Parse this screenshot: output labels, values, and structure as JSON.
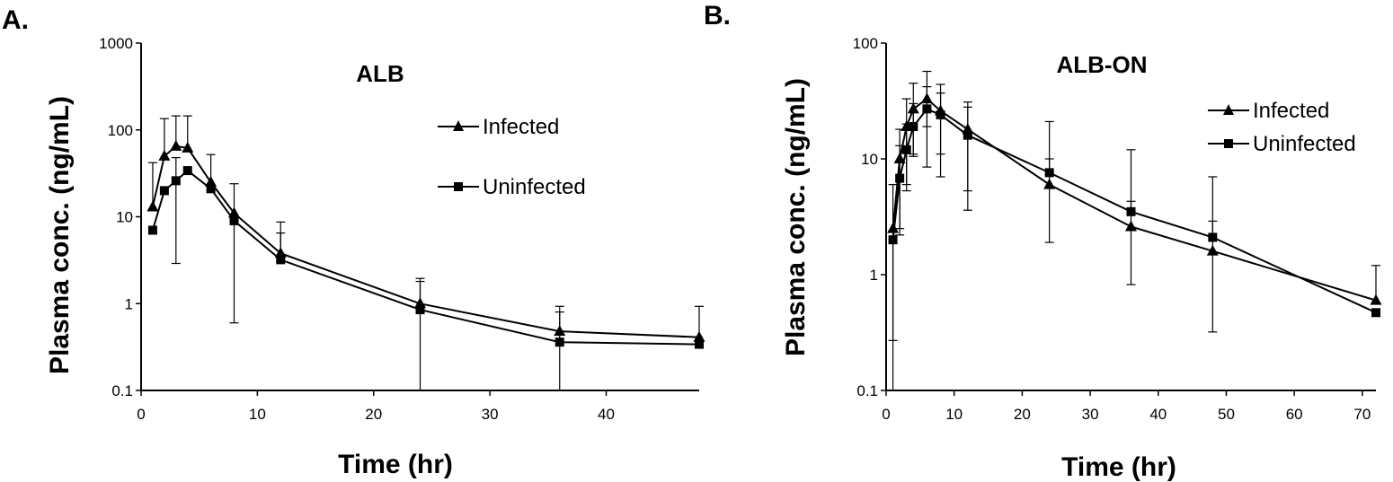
{
  "panels": [
    {
      "label": "A."
    },
    {
      "label": "B."
    }
  ],
  "chart_data": [
    {
      "type": "line",
      "title": "ALB",
      "xlabel": "Time (hr)",
      "ylabel": "Plasma conc. (ng/mL)",
      "yscale": "log",
      "xlim": [
        0,
        48
      ],
      "ylim": [
        0.1,
        1000
      ],
      "xticks": [
        0,
        10,
        20,
        30,
        40
      ],
      "yticks": [
        0.1,
        1,
        10,
        100,
        1000
      ],
      "ytick_labels": [
        "0.1",
        "1",
        "10",
        "100",
        "1000"
      ],
      "legend_position": "upper-right",
      "series": [
        {
          "name": "Infected",
          "marker": "triangle",
          "x": [
            1,
            2,
            3,
            4,
            6,
            8,
            12,
            24,
            36,
            48
          ],
          "y": [
            13,
            50,
            65,
            62,
            25,
            11,
            3.8,
            1.0,
            0.48,
            0.41
          ],
          "err_upper": [
            42,
            135,
            145,
            145,
            52,
            24,
            8.7,
            1.95,
            0.93,
            0.93
          ]
        },
        {
          "name": "Uninfected",
          "marker": "square",
          "x": [
            1,
            2,
            3,
            4,
            6,
            8,
            12,
            24,
            36,
            48
          ],
          "y": [
            7,
            20,
            26,
            34,
            21,
            9,
            3.2,
            0.85,
            0.36,
            0.34
          ],
          "err_lower": [
            7,
            20,
            2.9,
            34,
            21,
            0.6,
            3.2,
            0.1,
            0.1,
            0.34
          ],
          "err_upper": [
            7,
            20,
            48,
            34,
            21,
            9,
            6.5,
            1.8,
            0.8,
            0.34
          ]
        }
      ]
    },
    {
      "type": "line",
      "title": "ALB-ON",
      "xlabel": "Time (hr)",
      "ylabel": "Plasma conc. (ng/mL)",
      "yscale": "log",
      "xlim": [
        0,
        72
      ],
      "ylim": [
        0.1,
        100
      ],
      "xticks": [
        0,
        10,
        20,
        30,
        40,
        50,
        60,
        70
      ],
      "yticks": [
        0.1,
        1,
        10,
        100
      ],
      "ytick_labels": [
        "0.1",
        "1",
        "10",
        "100"
      ],
      "legend_position": "upper-right",
      "series": [
        {
          "name": "Infected",
          "marker": "triangle",
          "x": [
            1,
            2,
            3,
            4,
            6,
            8,
            12,
            24,
            36,
            48,
            72
          ],
          "y": [
            2.5,
            10,
            19,
            27,
            33,
            26,
            18,
            6,
            2.6,
            1.6,
            0.6
          ],
          "err_lower": [
            0.1,
            2.5,
            6,
            11,
            19,
            11,
            5.3,
            1.9,
            0.82,
            0.32,
            0.6
          ],
          "err_upper": [
            6,
            18,
            33,
            45,
            57,
            44,
            31,
            21,
            12,
            7,
            1.2
          ]
        },
        {
          "name": "Uninfected",
          "marker": "square",
          "x": [
            1,
            2,
            3,
            4,
            6,
            8,
            12,
            24,
            36,
            48,
            72
          ],
          "y": [
            2,
            6.8,
            12,
            19,
            27,
            24,
            16,
            7.6,
            3.5,
            2.1,
            0.47
          ],
          "err_lower": [
            0.27,
            2.2,
            5.3,
            10.5,
            8.5,
            7,
            3.6,
            7.6,
            3.5,
            2.1,
            0.47
          ],
          "err_upper": [
            2,
            13,
            20,
            30,
            42,
            37,
            28,
            10,
            4.3,
            2.9,
            0.47
          ]
        }
      ]
    }
  ]
}
